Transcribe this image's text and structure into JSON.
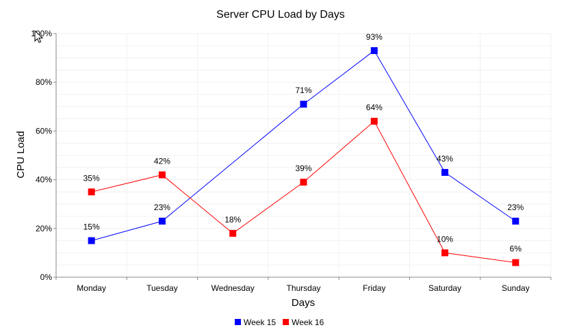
{
  "chart_data": {
    "type": "line",
    "title": "Server CPU Load by Days",
    "xlabel": "Days",
    "ylabel": "CPU Load",
    "categories": [
      "Monday",
      "Tuesday",
      "Wednesday",
      "Thursday",
      "Friday",
      "Saturday",
      "Sunday"
    ],
    "ylim": [
      0,
      100
    ],
    "yticks": [
      "0%",
      "20%",
      "40%",
      "60%",
      "80%",
      "100%"
    ],
    "grid": true,
    "legend_position": "bottom",
    "series": [
      {
        "name": "Week 15",
        "color": "#0000ff",
        "values": [
          15,
          23,
          null,
          71,
          93,
          43,
          23
        ],
        "labels": [
          "15%",
          "23%",
          "",
          "71%",
          "93%",
          "43%",
          "23%"
        ]
      },
      {
        "name": "Week 16",
        "color": "#ff0000",
        "values": [
          35,
          42,
          18,
          39,
          64,
          10,
          6
        ],
        "labels": [
          "35%",
          "42%",
          "18%",
          "39%",
          "64%",
          "10%",
          "6%"
        ]
      }
    ]
  }
}
